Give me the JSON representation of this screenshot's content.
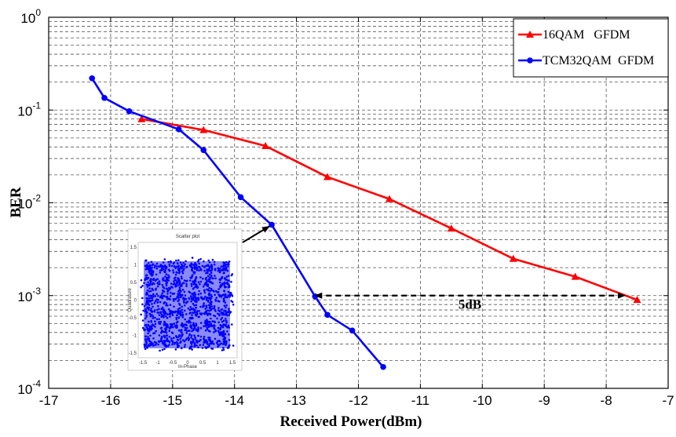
{
  "chart_data": {
    "type": "line",
    "xlabel": "Received Power(dBm)",
    "ylabel": "BER",
    "xlim": [
      -17,
      -7
    ],
    "ylim": [
      0.0001,
      1
    ],
    "yscale": "log",
    "x_ticks": [
      "-17",
      "-16",
      "-15",
      "-14",
      "-13",
      "-12",
      "-11",
      "-10",
      "-9",
      "-8",
      "-7"
    ],
    "y_ticks": [
      {
        "base": "10",
        "exp": "0",
        "value": 1
      },
      {
        "base": "10",
        "exp": "-1",
        "value": 0.1
      },
      {
        "base": "10",
        "exp": "-2",
        "value": 0.01
      },
      {
        "base": "10",
        "exp": "-3",
        "value": 0.001
      },
      {
        "base": "10",
        "exp": "-4",
        "value": 0.0001
      }
    ],
    "grid": true,
    "legend_position": "top-right",
    "series": [
      {
        "name": "16QAM   GFDM",
        "color": "#ff0000",
        "marker": "triangle",
        "x": [
          -15.5,
          -14.5,
          -13.5,
          -12.5,
          -11.5,
          -10.5,
          -9.5,
          -8.5,
          -7.5
        ],
        "y": [
          0.08,
          0.061,
          0.041,
          0.019,
          0.011,
          0.0053,
          0.0025,
          0.0016,
          0.0009
        ]
      },
      {
        "name": "TCM32QAM  GFDM",
        "color": "#0000ff",
        "marker": "circle",
        "x": [
          -16.3,
          -16.1,
          -15.7,
          -14.9,
          -14.5,
          -13.9,
          -13.4,
          -12.7,
          -12.5,
          -12.1,
          -11.6
        ],
        "y": [
          0.22,
          0.135,
          0.097,
          0.062,
          0.037,
          0.0115,
          0.0058,
          0.00098,
          0.00062,
          0.00042,
          0.00017
        ]
      }
    ],
    "annotations": [
      {
        "text": "5dB",
        "type": "double-arrow",
        "x_from": -12.7,
        "x_to": -7.7,
        "y": 0.001,
        "text_x": -10.2,
        "text_y": 0.00072
      }
    ],
    "inset": {
      "title": "Scatter plot",
      "xlabel": "In-Phase",
      "ylabel": "Quadrature",
      "x_ticks": [
        "-1.5",
        "-1",
        "-0.5",
        "0",
        "0.5",
        "1",
        "1.5"
      ],
      "y_ticks": [
        "1.5",
        "1",
        "0.5",
        "0",
        "-0.5",
        "-1",
        "-1.5"
      ],
      "color": "#0000ff",
      "arrow_target": {
        "x": -13.4,
        "y": 0.0058
      }
    }
  }
}
